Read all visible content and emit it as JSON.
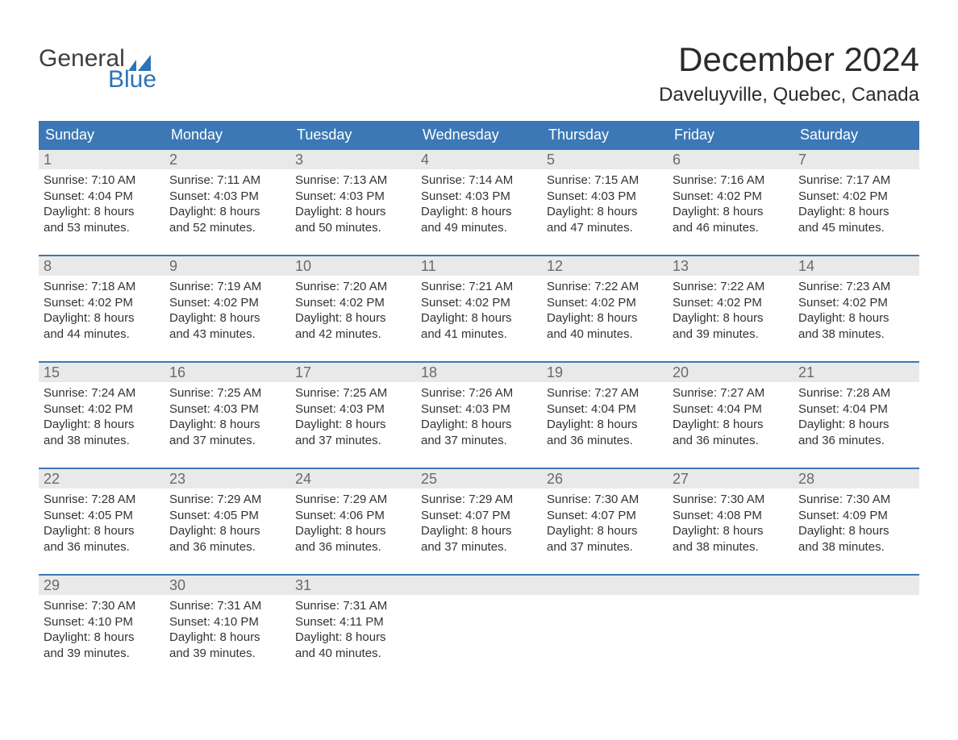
{
  "brand": {
    "word1": "General",
    "word2": "Blue",
    "logo_dark": "#3e3e3e",
    "logo_blue": "#2b74b8"
  },
  "title": {
    "month_year": "December 2024",
    "location": "Daveluyville, Quebec, Canada"
  },
  "colors": {
    "header_blue": "#3b78b5",
    "daynum_bg": "#e9e9e9",
    "text": "#333333",
    "page_bg": "#ffffff"
  },
  "typography": {
    "title_fontsize": 42,
    "location_fontsize": 24,
    "header_fontsize": 18,
    "daynum_fontsize": 18,
    "body_fontsize": 15,
    "font_family": "Arial"
  },
  "calendar": {
    "type": "table",
    "columns": [
      "Sunday",
      "Monday",
      "Tuesday",
      "Wednesday",
      "Thursday",
      "Friday",
      "Saturday"
    ],
    "weeks": [
      [
        {
          "day": "1",
          "sunrise": "Sunrise: 7:10 AM",
          "sunset": "Sunset: 4:04 PM",
          "dl1": "Daylight: 8 hours",
          "dl2": "and 53 minutes."
        },
        {
          "day": "2",
          "sunrise": "Sunrise: 7:11 AM",
          "sunset": "Sunset: 4:03 PM",
          "dl1": "Daylight: 8 hours",
          "dl2": "and 52 minutes."
        },
        {
          "day": "3",
          "sunrise": "Sunrise: 7:13 AM",
          "sunset": "Sunset: 4:03 PM",
          "dl1": "Daylight: 8 hours",
          "dl2": "and 50 minutes."
        },
        {
          "day": "4",
          "sunrise": "Sunrise: 7:14 AM",
          "sunset": "Sunset: 4:03 PM",
          "dl1": "Daylight: 8 hours",
          "dl2": "and 49 minutes."
        },
        {
          "day": "5",
          "sunrise": "Sunrise: 7:15 AM",
          "sunset": "Sunset: 4:03 PM",
          "dl1": "Daylight: 8 hours",
          "dl2": "and 47 minutes."
        },
        {
          "day": "6",
          "sunrise": "Sunrise: 7:16 AM",
          "sunset": "Sunset: 4:02 PM",
          "dl1": "Daylight: 8 hours",
          "dl2": "and 46 minutes."
        },
        {
          "day": "7",
          "sunrise": "Sunrise: 7:17 AM",
          "sunset": "Sunset: 4:02 PM",
          "dl1": "Daylight: 8 hours",
          "dl2": "and 45 minutes."
        }
      ],
      [
        {
          "day": "8",
          "sunrise": "Sunrise: 7:18 AM",
          "sunset": "Sunset: 4:02 PM",
          "dl1": "Daylight: 8 hours",
          "dl2": "and 44 minutes."
        },
        {
          "day": "9",
          "sunrise": "Sunrise: 7:19 AM",
          "sunset": "Sunset: 4:02 PM",
          "dl1": "Daylight: 8 hours",
          "dl2": "and 43 minutes."
        },
        {
          "day": "10",
          "sunrise": "Sunrise: 7:20 AM",
          "sunset": "Sunset: 4:02 PM",
          "dl1": "Daylight: 8 hours",
          "dl2": "and 42 minutes."
        },
        {
          "day": "11",
          "sunrise": "Sunrise: 7:21 AM",
          "sunset": "Sunset: 4:02 PM",
          "dl1": "Daylight: 8 hours",
          "dl2": "and 41 minutes."
        },
        {
          "day": "12",
          "sunrise": "Sunrise: 7:22 AM",
          "sunset": "Sunset: 4:02 PM",
          "dl1": "Daylight: 8 hours",
          "dl2": "and 40 minutes."
        },
        {
          "day": "13",
          "sunrise": "Sunrise: 7:22 AM",
          "sunset": "Sunset: 4:02 PM",
          "dl1": "Daylight: 8 hours",
          "dl2": "and 39 minutes."
        },
        {
          "day": "14",
          "sunrise": "Sunrise: 7:23 AM",
          "sunset": "Sunset: 4:02 PM",
          "dl1": "Daylight: 8 hours",
          "dl2": "and 38 minutes."
        }
      ],
      [
        {
          "day": "15",
          "sunrise": "Sunrise: 7:24 AM",
          "sunset": "Sunset: 4:02 PM",
          "dl1": "Daylight: 8 hours",
          "dl2": "and 38 minutes."
        },
        {
          "day": "16",
          "sunrise": "Sunrise: 7:25 AM",
          "sunset": "Sunset: 4:03 PM",
          "dl1": "Daylight: 8 hours",
          "dl2": "and 37 minutes."
        },
        {
          "day": "17",
          "sunrise": "Sunrise: 7:25 AM",
          "sunset": "Sunset: 4:03 PM",
          "dl1": "Daylight: 8 hours",
          "dl2": "and 37 minutes."
        },
        {
          "day": "18",
          "sunrise": "Sunrise: 7:26 AM",
          "sunset": "Sunset: 4:03 PM",
          "dl1": "Daylight: 8 hours",
          "dl2": "and 37 minutes."
        },
        {
          "day": "19",
          "sunrise": "Sunrise: 7:27 AM",
          "sunset": "Sunset: 4:04 PM",
          "dl1": "Daylight: 8 hours",
          "dl2": "and 36 minutes."
        },
        {
          "day": "20",
          "sunrise": "Sunrise: 7:27 AM",
          "sunset": "Sunset: 4:04 PM",
          "dl1": "Daylight: 8 hours",
          "dl2": "and 36 minutes."
        },
        {
          "day": "21",
          "sunrise": "Sunrise: 7:28 AM",
          "sunset": "Sunset: 4:04 PM",
          "dl1": "Daylight: 8 hours",
          "dl2": "and 36 minutes."
        }
      ],
      [
        {
          "day": "22",
          "sunrise": "Sunrise: 7:28 AM",
          "sunset": "Sunset: 4:05 PM",
          "dl1": "Daylight: 8 hours",
          "dl2": "and 36 minutes."
        },
        {
          "day": "23",
          "sunrise": "Sunrise: 7:29 AM",
          "sunset": "Sunset: 4:05 PM",
          "dl1": "Daylight: 8 hours",
          "dl2": "and 36 minutes."
        },
        {
          "day": "24",
          "sunrise": "Sunrise: 7:29 AM",
          "sunset": "Sunset: 4:06 PM",
          "dl1": "Daylight: 8 hours",
          "dl2": "and 36 minutes."
        },
        {
          "day": "25",
          "sunrise": "Sunrise: 7:29 AM",
          "sunset": "Sunset: 4:07 PM",
          "dl1": "Daylight: 8 hours",
          "dl2": "and 37 minutes."
        },
        {
          "day": "26",
          "sunrise": "Sunrise: 7:30 AM",
          "sunset": "Sunset: 4:07 PM",
          "dl1": "Daylight: 8 hours",
          "dl2": "and 37 minutes."
        },
        {
          "day": "27",
          "sunrise": "Sunrise: 7:30 AM",
          "sunset": "Sunset: 4:08 PM",
          "dl1": "Daylight: 8 hours",
          "dl2": "and 38 minutes."
        },
        {
          "day": "28",
          "sunrise": "Sunrise: 7:30 AM",
          "sunset": "Sunset: 4:09 PM",
          "dl1": "Daylight: 8 hours",
          "dl2": "and 38 minutes."
        }
      ],
      [
        {
          "day": "29",
          "sunrise": "Sunrise: 7:30 AM",
          "sunset": "Sunset: 4:10 PM",
          "dl1": "Daylight: 8 hours",
          "dl2": "and 39 minutes."
        },
        {
          "day": "30",
          "sunrise": "Sunrise: 7:31 AM",
          "sunset": "Sunset: 4:10 PM",
          "dl1": "Daylight: 8 hours",
          "dl2": "and 39 minutes."
        },
        {
          "day": "31",
          "sunrise": "Sunrise: 7:31 AM",
          "sunset": "Sunset: 4:11 PM",
          "dl1": "Daylight: 8 hours",
          "dl2": "and 40 minutes."
        },
        {
          "empty": true
        },
        {
          "empty": true
        },
        {
          "empty": true
        },
        {
          "empty": true
        }
      ]
    ]
  }
}
